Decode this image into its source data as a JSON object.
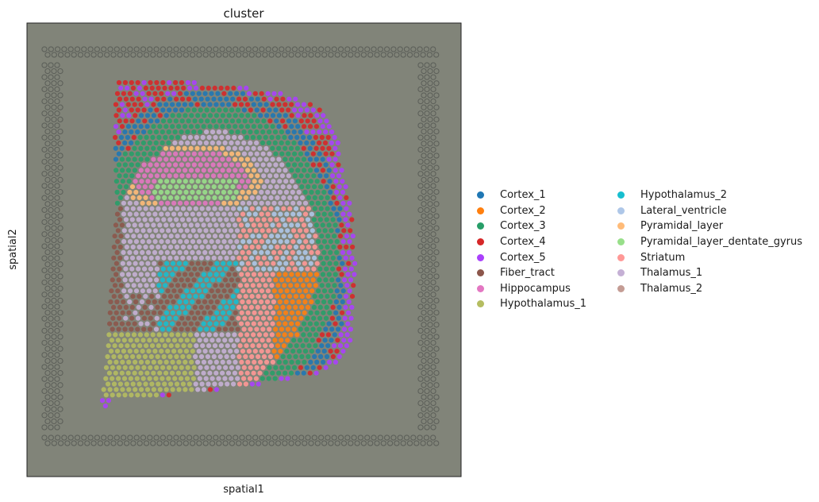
{
  "chart_data": {
    "type": "scatter",
    "title": "cluster",
    "xlabel": "spatial1",
    "ylabel": "spatial2",
    "grid": false,
    "legend_position": "right",
    "background_color": "#818479",
    "categories": [
      {
        "name": "Cortex_1",
        "color": "#1f77b4"
      },
      {
        "name": "Cortex_2",
        "color": "#ff7f0e"
      },
      {
        "name": "Cortex_3",
        "color": "#279e68"
      },
      {
        "name": "Cortex_4",
        "color": "#d62728"
      },
      {
        "name": "Cortex_5",
        "color": "#aa40fc"
      },
      {
        "name": "Fiber_tract",
        "color": "#8c564b"
      },
      {
        "name": "Hippocampus",
        "color": "#e377c2"
      },
      {
        "name": "Hypothalamus_1",
        "color": "#b5bd61"
      },
      {
        "name": "Hypothalamus_2",
        "color": "#17becf"
      },
      {
        "name": "Lateral_ventricle",
        "color": "#aec7e8"
      },
      {
        "name": "Pyramidal_layer",
        "color": "#ffbb78"
      },
      {
        "name": "Pyramidal_layer_dentate_gyrus",
        "color": "#98df8a"
      },
      {
        "name": "Striatum",
        "color": "#ff9896"
      },
      {
        "name": "Thalamus_1",
        "color": "#c5b0d5"
      },
      {
        "name": "Thalamus_2",
        "color": "#c49c94"
      }
    ]
  }
}
